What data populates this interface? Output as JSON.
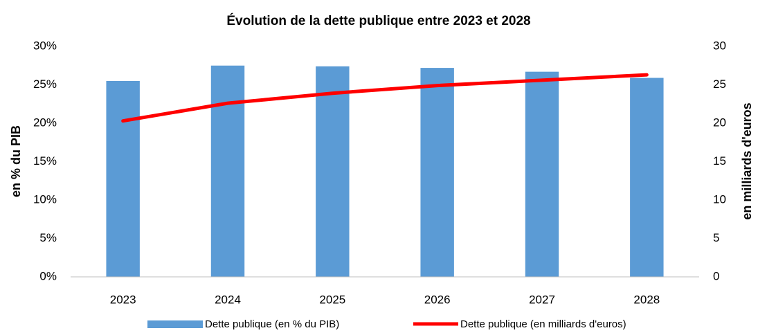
{
  "chart_data": {
    "type": "bar_line",
    "title": "Évolution de la dette publique entre 2023 et 2028",
    "y_label": "en % du PIB",
    "y2_label": "en milliards d'euros",
    "categories": [
      "2023",
      "2024",
      "2025",
      "2026",
      "2027",
      "2028"
    ],
    "series": [
      {
        "name": "Dette publique (en % du PIB)",
        "type": "bar",
        "color": "#5b9bd5",
        "axis": "y",
        "values": [
          25.5,
          27.5,
          27.4,
          27.2,
          26.7,
          25.9
        ]
      },
      {
        "name": "Dette publique (en milliards d'euros)",
        "type": "line",
        "color": "#ff0000",
        "axis": "y2",
        "values": [
          20.3,
          22.6,
          23.9,
          24.9,
          25.6,
          26.3
        ]
      }
    ],
    "ylim": [
      0,
      30
    ],
    "yticks": [
      {
        "value": 0,
        "label": "0%"
      },
      {
        "value": 5,
        "label": "5%"
      },
      {
        "value": 10,
        "label": "10%"
      },
      {
        "value": 15,
        "label": "15%"
      },
      {
        "value": 20,
        "label": "20%"
      },
      {
        "value": 25,
        "label": "25%"
      },
      {
        "value": 30,
        "label": "30%"
      }
    ],
    "y2lim": [
      0,
      30
    ],
    "y2ticks": [
      0,
      5,
      10,
      15,
      20,
      25,
      30
    ],
    "legend": "bottom",
    "grid": false
  }
}
